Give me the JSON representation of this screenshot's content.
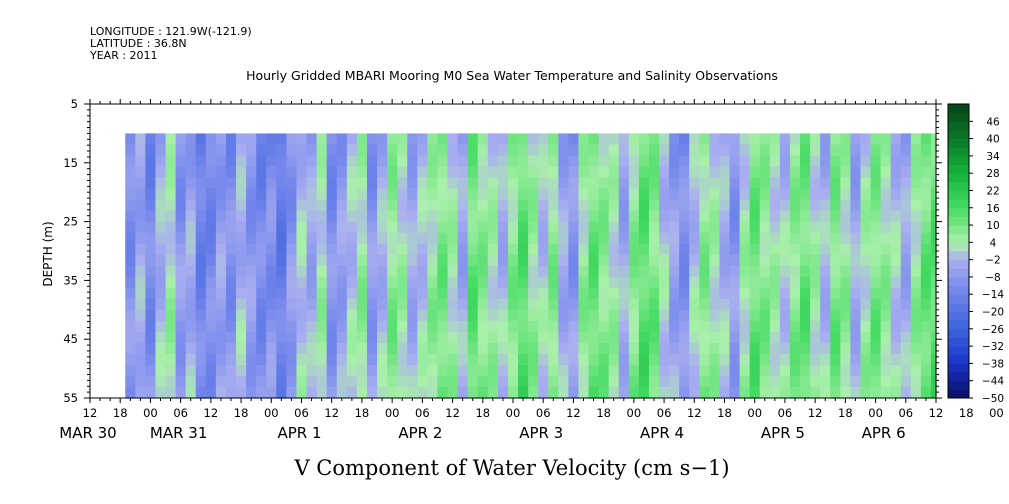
{
  "meta": {
    "longitude": "LONGITUDE : 121.9W(-121.9)",
    "latitude": "LATITUDE : 36.8N",
    "year": "YEAR : 2011"
  },
  "chart_data": {
    "type": "heatmap",
    "title": "Hourly Gridded MBARI Mooring M0 Sea Water Temperature and Salinity Observations",
    "xlabel": "V Component of Water Velocity (cm s−1)",
    "ylabel": "DEPTH (m)",
    "ylim": [
      55,
      5
    ],
    "y_ticks": [
      "5",
      "15",
      "25",
      "35",
      "45",
      "55"
    ],
    "x_hour_ticks": [
      "12",
      "18",
      "00",
      "06",
      "12",
      "18",
      "00",
      "06",
      "12",
      "18",
      "00",
      "06",
      "12",
      "18",
      "00",
      "06",
      "12",
      "18",
      "00",
      "06",
      "12",
      "18",
      "00",
      "06",
      "12",
      "18",
      "00",
      "06",
      "12",
      "18",
      "00",
      "06",
      "12"
    ],
    "date_labels": [
      {
        "text": "MAR 30",
        "hour": 12
      },
      {
        "text": "MAR 31",
        "hour": 30
      },
      {
        "text": "APR  1",
        "hour": 54
      },
      {
        "text": "APR  2",
        "hour": 78
      },
      {
        "text": "APR  3",
        "hour": 102
      },
      {
        "text": "APR  4",
        "hour": 126
      },
      {
        "text": "APR  5",
        "hour": 150
      },
      {
        "text": "APR  6",
        "hour": 170
      }
    ],
    "x_range_hours": [
      12,
      180
    ],
    "data_start_hour": 19,
    "data_end_hour": 180,
    "data_depth_range": [
      10,
      55
    ],
    "colorbar": {
      "levels": [
        "46",
        "40",
        "34",
        "28",
        "22",
        "16",
        "10",
        "4",
        "−2",
        "−8",
        "−14",
        "−20",
        "−26",
        "−32",
        "−38",
        "−44",
        "−50"
      ],
      "min": -50,
      "max": 52,
      "step": 3
    },
    "bands": [
      {
        "hour": 20,
        "v": -12
      },
      {
        "hour": 22,
        "v": -6
      },
      {
        "hour": 24,
        "v": -14
      },
      {
        "hour": 26,
        "v": -4
      },
      {
        "hour": 28,
        "v": 2
      },
      {
        "hour": 30,
        "v": -10
      },
      {
        "hour": 32,
        "v": -6
      },
      {
        "hour": 34,
        "v": -16
      },
      {
        "hour": 36,
        "v": -14
      },
      {
        "hour": 38,
        "v": -8
      },
      {
        "hour": 40,
        "v": -12
      },
      {
        "hour": 42,
        "v": -4
      },
      {
        "hour": 44,
        "v": -10
      },
      {
        "hour": 46,
        "v": -14
      },
      {
        "hour": 48,
        "v": -12
      },
      {
        "hour": 50,
        "v": -18
      },
      {
        "hour": 52,
        "v": -10
      },
      {
        "hour": 54,
        "v": -2
      },
      {
        "hour": 56,
        "v": -6
      },
      {
        "hour": 58,
        "v": 2
      },
      {
        "hour": 60,
        "v": -12
      },
      {
        "hour": 62,
        "v": -8
      },
      {
        "hour": 64,
        "v": -2
      },
      {
        "hour": 66,
        "v": 4
      },
      {
        "hour": 68,
        "v": -10
      },
      {
        "hour": 70,
        "v": -4
      },
      {
        "hour": 72,
        "v": 6
      },
      {
        "hour": 74,
        "v": 2
      },
      {
        "hour": 76,
        "v": -6
      },
      {
        "hour": 78,
        "v": -2
      },
      {
        "hour": 80,
        "v": 4
      },
      {
        "hour": 82,
        "v": 8
      },
      {
        "hour": 84,
        "v": 2
      },
      {
        "hour": 86,
        "v": -6
      },
      {
        "hour": 88,
        "v": 10
      },
      {
        "hour": 90,
        "v": 6
      },
      {
        "hour": 92,
        "v": 2
      },
      {
        "hour": 94,
        "v": -4
      },
      {
        "hour": 96,
        "v": 6
      },
      {
        "hour": 98,
        "v": 12
      },
      {
        "hour": 100,
        "v": 4
      },
      {
        "hour": 102,
        "v": -2
      },
      {
        "hour": 104,
        "v": 6
      },
      {
        "hour": 106,
        "v": -6
      },
      {
        "hour": 108,
        "v": -10
      },
      {
        "hour": 110,
        "v": 4
      },
      {
        "hour": 112,
        "v": 10
      },
      {
        "hour": 114,
        "v": 6
      },
      {
        "hour": 116,
        "v": 2
      },
      {
        "hour": 118,
        "v": -6
      },
      {
        "hour": 120,
        "v": 6
      },
      {
        "hour": 122,
        "v": 12
      },
      {
        "hour": 124,
        "v": 8
      },
      {
        "hour": 126,
        "v": -2
      },
      {
        "hour": 128,
        "v": -8
      },
      {
        "hour": 130,
        "v": -12
      },
      {
        "hour": 132,
        "v": -2
      },
      {
        "hour": 134,
        "v": 6
      },
      {
        "hour": 136,
        "v": 2
      },
      {
        "hour": 138,
        "v": -4
      },
      {
        "hour": 140,
        "v": -10
      },
      {
        "hour": 142,
        "v": 2
      },
      {
        "hour": 144,
        "v": 10
      },
      {
        "hour": 146,
        "v": 6
      },
      {
        "hour": 148,
        "v": 2
      },
      {
        "hour": 150,
        "v": -2
      },
      {
        "hour": 152,
        "v": 6
      },
      {
        "hour": 154,
        "v": 10
      },
      {
        "hour": 156,
        "v": 2
      },
      {
        "hour": 158,
        "v": -4
      },
      {
        "hour": 160,
        "v": 8
      },
      {
        "hour": 162,
        "v": 4
      },
      {
        "hour": 164,
        "v": -6
      },
      {
        "hour": 166,
        "v": 2
      },
      {
        "hour": 168,
        "v": 8
      },
      {
        "hour": 170,
        "v": 4
      },
      {
        "hour": 172,
        "v": -2
      },
      {
        "hour": 174,
        "v": -6
      },
      {
        "hour": 176,
        "v": 4
      },
      {
        "hour": 178,
        "v": 10
      },
      {
        "hour": 180,
        "v": 12
      }
    ],
    "grid": false,
    "legend": "right colorbar"
  }
}
